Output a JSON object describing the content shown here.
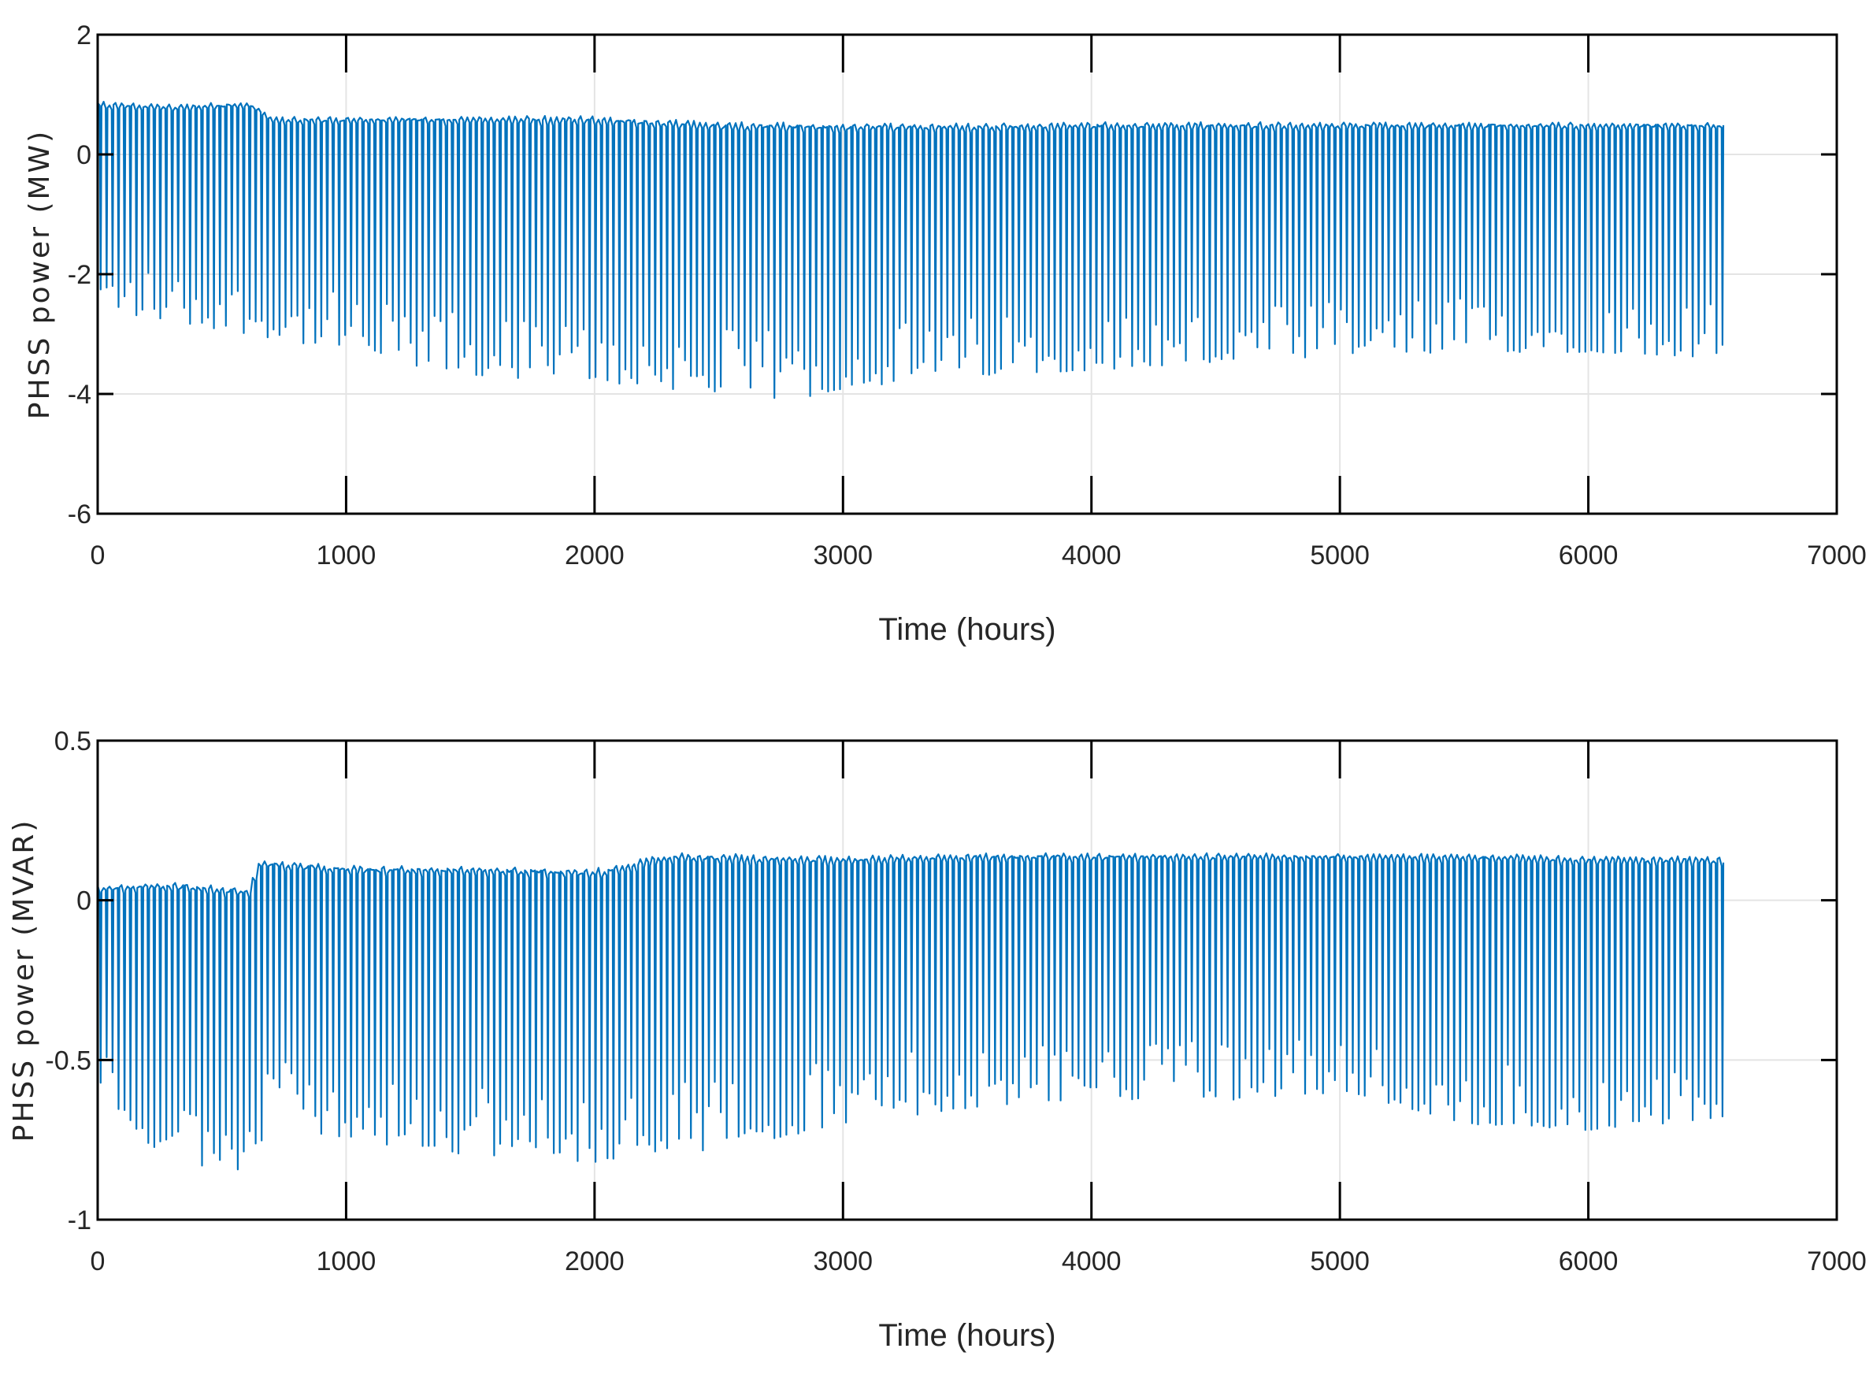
{
  "colors": {
    "series": "#0072BD",
    "grid": "#e4e4e4",
    "axes": "#000000"
  },
  "chart_data": [
    {
      "type": "line",
      "title": "",
      "xlabel": "Time (hours)",
      "ylabel": "PHSS power (MW)",
      "xlim": [
        0,
        7000
      ],
      "ylim": [
        -6,
        2
      ],
      "xticks": [
        0,
        1000,
        2000,
        3000,
        4000,
        5000,
        6000,
        7000
      ],
      "yticks": [
        2,
        0,
        -2,
        -4,
        -6
      ],
      "grid": true,
      "series": [
        {
          "x_range": [
            0,
            6550
          ],
          "sample_hours": 24,
          "upper_envelope": [
            [
              0,
              0.85
            ],
            [
              300,
              0.8
            ],
            [
              600,
              0.85
            ],
            [
              700,
              0.6
            ],
            [
              1000,
              0.6
            ],
            [
              1500,
              0.6
            ],
            [
              2000,
              0.6
            ],
            [
              2500,
              0.5
            ],
            [
              3000,
              0.48
            ],
            [
              3500,
              0.48
            ],
            [
              4000,
              0.5
            ],
            [
              4500,
              0.5
            ],
            [
              5000,
              0.5
            ],
            [
              5500,
              0.5
            ],
            [
              6000,
              0.5
            ],
            [
              6550,
              0.5
            ]
          ],
          "lower_envelope": [
            [
              0,
              -2.6
            ],
            [
              300,
              -2.8
            ],
            [
              600,
              -3.0
            ],
            [
              1000,
              -3.3
            ],
            [
              1200,
              -3.5
            ],
            [
              1500,
              -3.7
            ],
            [
              2000,
              -3.8
            ],
            [
              2500,
              -4.0
            ],
            [
              2800,
              -4.1
            ],
            [
              3000,
              -3.9
            ],
            [
              3500,
              -3.7
            ],
            [
              4000,
              -3.6
            ],
            [
              4500,
              -3.5
            ],
            [
              5000,
              -3.4
            ],
            [
              5500,
              -3.3
            ],
            [
              6000,
              -3.3
            ],
            [
              6550,
              -3.4
            ]
          ]
        }
      ]
    },
    {
      "type": "line",
      "title": "",
      "xlabel": "Time (hours)",
      "ylabel": "PHSS power (MVAR)",
      "xlim": [
        0,
        7000
      ],
      "ylim": [
        -1,
        0.5
      ],
      "xticks": [
        0,
        1000,
        2000,
        3000,
        4000,
        5000,
        6000,
        7000
      ],
      "yticks": [
        0.5,
        0,
        -0.5,
        -1
      ],
      "grid": true,
      "series": [
        {
          "x_range": [
            0,
            6550
          ],
          "sample_hours": 24,
          "upper_envelope": [
            [
              0,
              0.04
            ],
            [
              300,
              0.05
            ],
            [
              600,
              0.03
            ],
            [
              650,
              0.12
            ],
            [
              1000,
              0.1
            ],
            [
              1500,
              0.1
            ],
            [
              2000,
              0.09
            ],
            [
              2300,
              0.14
            ],
            [
              3000,
              0.13
            ],
            [
              3500,
              0.14
            ],
            [
              4000,
              0.14
            ],
            [
              4500,
              0.14
            ],
            [
              5000,
              0.14
            ],
            [
              5500,
              0.14
            ],
            [
              6000,
              0.13
            ],
            [
              6550,
              0.13
            ]
          ],
          "lower_envelope": [
            [
              0,
              -0.6
            ],
            [
              300,
              -0.85
            ],
            [
              500,
              -0.9
            ],
            [
              700,
              -0.7
            ],
            [
              1000,
              -0.75
            ],
            [
              1500,
              -0.8
            ],
            [
              2000,
              -0.82
            ],
            [
              2500,
              -0.78
            ],
            [
              3000,
              -0.7
            ],
            [
              3500,
              -0.65
            ],
            [
              4000,
              -0.62
            ],
            [
              4500,
              -0.63
            ],
            [
              5000,
              -0.6
            ],
            [
              5500,
              -0.7
            ],
            [
              6000,
              -0.72
            ],
            [
              6550,
              -0.68
            ]
          ]
        }
      ]
    }
  ]
}
